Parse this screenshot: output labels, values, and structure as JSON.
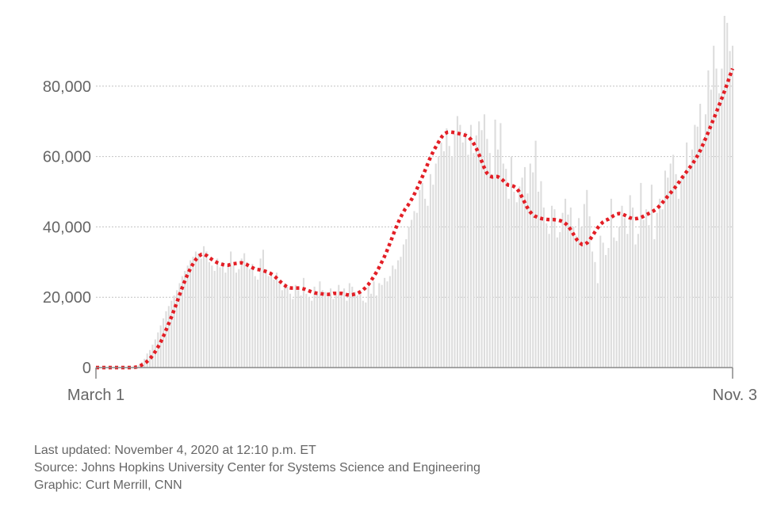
{
  "chart_data": {
    "type": "bar",
    "title": "",
    "xlabel": "",
    "ylabel": "",
    "x_tick_labels": [
      "March 1",
      "Nov. 3"
    ],
    "y_ticks": [
      0,
      20000,
      40000,
      60000,
      80000
    ],
    "y_tick_labels": [
      "0",
      "20,000",
      "40,000",
      "60,000",
      "80,000"
    ],
    "ylim": [
      0,
      100000
    ],
    "grid": true,
    "legend": "none",
    "series": [
      {
        "type": "bar",
        "color": "#dddddd",
        "values": [
          0,
          0,
          0,
          0,
          0,
          0,
          0,
          0,
          0,
          0,
          0,
          0,
          0,
          100,
          200,
          400,
          800,
          1500,
          2500,
          4000,
          5000,
          6500,
          8000,
          10000,
          12000,
          14000,
          16000,
          17500,
          19000,
          20500,
          22000,
          24000,
          26000,
          27500,
          29000,
          30500,
          31500,
          33000,
          32500,
          31000,
          34500,
          33000,
          30000,
          29000,
          27500,
          31000,
          28500,
          30000,
          27000,
          29000,
          33000,
          29000,
          27000,
          28000,
          31000,
          32500,
          30000,
          28000,
          29500,
          26000,
          25000,
          31000,
          33500,
          28000,
          26000,
          26500,
          25000,
          27000,
          24500,
          22000,
          24000,
          23000,
          21000,
          19500,
          23500,
          22000,
          20500,
          25500,
          21000,
          20000,
          19000,
          23000,
          21000,
          24500,
          22000,
          21500,
          20000,
          22500,
          19500,
          20500,
          23500,
          21500,
          22500,
          19000,
          24000,
          23000,
          21500,
          20500,
          22000,
          19000,
          18500,
          23000,
          21000,
          24500,
          20500,
          24000,
          23500,
          25500,
          24500,
          26000,
          29000,
          28000,
          30500,
          31500,
          35000,
          36500,
          40000,
          42000,
          44500,
          44000,
          50500,
          52500,
          48000,
          46000,
          55000,
          52000,
          58000,
          60000,
          64000,
          61500,
          68000,
          63000,
          60000,
          66500,
          71500,
          69000,
          64000,
          67000,
          60500,
          69000,
          61000,
          66000,
          70000,
          67500,
          72000,
          65000,
          61000,
          55000,
          70500,
          62000,
          69500,
          58000,
          56500,
          48000,
          60000,
          50000,
          47000,
          51500,
          54000,
          57000,
          49500,
          58000,
          55500,
          64500,
          50000,
          53000,
          45500,
          41000,
          38000,
          46000,
          45000,
          37000,
          38500,
          44000,
          48000,
          43500,
          45500,
          40000,
          37500,
          42500,
          40000,
          46500,
          50500,
          43000,
          33000,
          30000,
          24000,
          37500,
          35500,
          32000,
          34000,
          48000,
          37000,
          36000,
          40000,
          46000,
          42500,
          38000,
          49000,
          45500,
          35000,
          38000,
          52500,
          42000,
          45000,
          40500,
          52000,
          36500,
          44000,
          48000,
          45000,
          56000,
          54000,
          58000,
          60500,
          55000,
          48000,
          53500,
          55000,
          64000,
          56500,
          62000,
          69000,
          68500,
          75000,
          65000,
          72000,
          84500,
          79000,
          91500,
          85000,
          78000,
          85000,
          100000,
          98000,
          90000,
          91500
        ]
      },
      {
        "type": "line",
        "style": "dotted",
        "color": "#e31f26",
        "values": [
          0,
          0,
          0,
          0,
          0,
          0,
          0,
          0,
          0,
          0,
          0,
          0,
          0,
          0,
          0,
          100,
          300,
          600,
          1000,
          1500,
          2200,
          3000,
          4000,
          5200,
          6500,
          8000,
          9700,
          11500,
          13300,
          15200,
          17200,
          19300,
          21400,
          23400,
          25300,
          27000,
          28500,
          29800,
          30900,
          31700,
          32200,
          32200,
          31800,
          31200,
          30700,
          30200,
          29800,
          29500,
          29300,
          29100,
          29100,
          29300,
          29500,
          29600,
          29700,
          29800,
          29600,
          29300,
          28900,
          28500,
          28100,
          27900,
          27800,
          27600,
          27400,
          27100,
          26800,
          26300,
          25700,
          25000,
          24300,
          23700,
          23100,
          22700,
          22600,
          22600,
          22600,
          22600,
          22500,
          22300,
          22000,
          21700,
          21400,
          21200,
          21100,
          21000,
          20900,
          20800,
          20800,
          20900,
          21100,
          21100,
          21100,
          21100,
          20900,
          20700,
          20600,
          20700,
          20900,
          21100,
          21500,
          22000,
          22700,
          23500,
          24500,
          25700,
          26900,
          28200,
          29700,
          31200,
          32900,
          34800,
          36700,
          38700,
          40500,
          42200,
          43700,
          45000,
          46000,
          47200,
          48500,
          50000,
          51600,
          53300,
          55000,
          56800,
          58700,
          60400,
          61900,
          63200,
          64500,
          65700,
          66500,
          66900,
          67000,
          66900,
          66800,
          66600,
          66400,
          66200,
          66000,
          65600,
          64800,
          63700,
          62300,
          60600,
          58700,
          56800,
          55300,
          54500,
          54200,
          54300,
          54300,
          53900,
          53300,
          52500,
          51900,
          51800,
          51600,
          51100,
          50200,
          48900,
          47400,
          45900,
          44600,
          43700,
          43100,
          42800,
          42500,
          42300,
          42200,
          42100,
          42100,
          42100,
          42000,
          41900,
          41700,
          41400,
          40800,
          40000,
          38900,
          37600,
          36400,
          35600,
          35000,
          35000,
          35500,
          36400,
          37500,
          38700,
          39800,
          40700,
          41400,
          41900,
          42200,
          42700,
          43200,
          43600,
          43800,
          43700,
          43400,
          43000,
          42600,
          42400,
          42300,
          42400,
          42600,
          42900,
          43300,
          43700,
          44100,
          44500,
          45000,
          45700,
          46500,
          47400,
          48300,
          49200,
          50100,
          51000,
          52000,
          53000,
          54100,
          55100,
          56100,
          57100,
          58100,
          59300,
          60600,
          62100,
          63800,
          65500,
          67300,
          69200,
          71000,
          72900,
          74800,
          76700,
          78700,
          80800,
          83000,
          85000
        ]
      }
    ]
  },
  "footer": {
    "last_updated": "Last updated: November 4, 2020 at 12:10 p.m. ET",
    "source": "Source: Johns Hopkins University Center for Systems Science and Engineering",
    "graphic": "Graphic: Curt Merrill, CNN"
  }
}
